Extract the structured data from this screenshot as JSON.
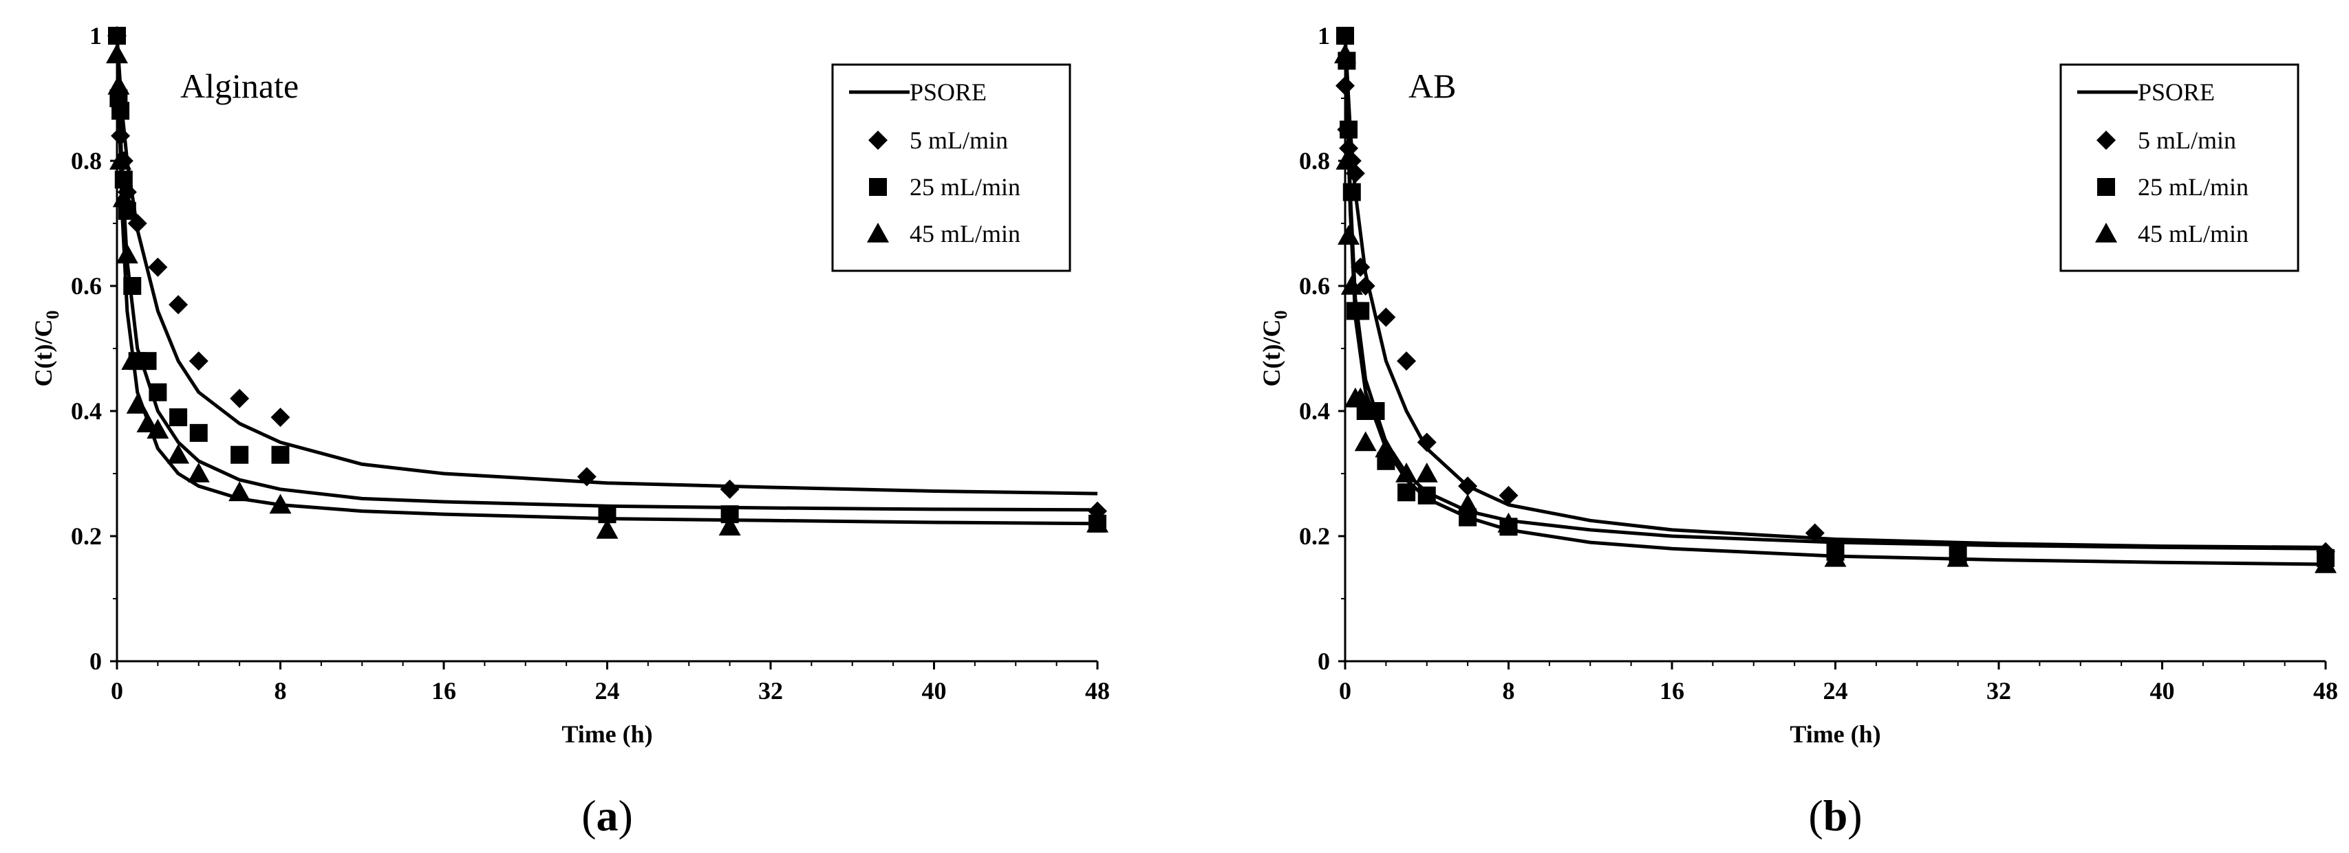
{
  "chart_data": [
    {
      "type": "scatter",
      "panel_label": "(a)",
      "annotation": "Alginate",
      "xlabel": "Time (h)",
      "ylabel": "C(t)/C",
      "ylabel_sub": "0",
      "xlim": [
        0,
        48
      ],
      "ylim": [
        0,
        1
      ],
      "xticks": [
        "0",
        "8",
        "16",
        "24",
        "32",
        "40",
        "48"
      ],
      "yticks": [
        "0",
        "0.2",
        "0.4",
        "0.6",
        "0.8",
        "1"
      ],
      "legend_position": "top-right",
      "model_label": "PSORE",
      "series": [
        {
          "name": "5 mL/min",
          "marker": "diamond",
          "x": [
            0,
            0.08,
            0.17,
            0.33,
            0.5,
            1,
            2,
            3,
            4,
            6,
            8,
            23,
            30,
            48
          ],
          "y": [
            1.0,
            0.91,
            0.84,
            0.8,
            0.75,
            0.7,
            0.63,
            0.57,
            0.48,
            0.42,
            0.39,
            0.295,
            0.275,
            0.24
          ]
        },
        {
          "name": "25 mL/min",
          "marker": "square",
          "x": [
            0,
            0.08,
            0.17,
            0.33,
            0.5,
            0.75,
            1,
            1.5,
            2,
            3,
            4,
            6,
            8,
            24,
            30,
            48
          ],
          "y": [
            1.0,
            0.9,
            0.88,
            0.77,
            0.72,
            0.6,
            0.48,
            0.48,
            0.43,
            0.39,
            0.365,
            0.33,
            0.33,
            0.235,
            0.235,
            0.22
          ]
        },
        {
          "name": "45 mL/min",
          "marker": "triangle",
          "x": [
            0,
            0.08,
            0.17,
            0.33,
            0.5,
            0.75,
            1,
            1.5,
            2,
            3,
            4,
            6,
            8,
            24,
            30,
            48
          ],
          "y": [
            0.97,
            0.92,
            0.8,
            0.74,
            0.65,
            0.48,
            0.41,
            0.38,
            0.37,
            0.33,
            0.3,
            0.27,
            0.25,
            0.21,
            0.215,
            0.22
          ]
        }
      ],
      "fits": [
        {
          "name": "PSORE 5 mL/min",
          "x": [
            0,
            0.25,
            0.5,
            1,
            2,
            3,
            4,
            6,
            8,
            12,
            16,
            24,
            32,
            40,
            48
          ],
          "y": [
            1.0,
            0.88,
            0.8,
            0.69,
            0.56,
            0.48,
            0.43,
            0.38,
            0.35,
            0.315,
            0.3,
            0.285,
            0.278,
            0.272,
            0.268
          ]
        },
        {
          "name": "PSORE 25 mL/min",
          "x": [
            0,
            0.25,
            0.5,
            1,
            2,
            3,
            4,
            6,
            8,
            12,
            16,
            24,
            32,
            40,
            48
          ],
          "y": [
            1.0,
            0.78,
            0.64,
            0.5,
            0.4,
            0.35,
            0.32,
            0.29,
            0.275,
            0.26,
            0.255,
            0.248,
            0.245,
            0.243,
            0.242
          ]
        },
        {
          "name": "PSORE 45 mL/min",
          "x": [
            0,
            0.25,
            0.5,
            1,
            2,
            3,
            4,
            6,
            8,
            12,
            16,
            24,
            32,
            40,
            48
          ],
          "y": [
            1.0,
            0.72,
            0.56,
            0.43,
            0.34,
            0.3,
            0.28,
            0.26,
            0.25,
            0.24,
            0.235,
            0.228,
            0.225,
            0.222,
            0.22
          ]
        }
      ]
    },
    {
      "type": "scatter",
      "panel_label": "(b)",
      "annotation": "AB",
      "xlabel": "Time (h)",
      "ylabel": "C(t)/C",
      "ylabel_sub": "0",
      "xlim": [
        0,
        48
      ],
      "ylim": [
        0,
        1
      ],
      "xticks": [
        "0",
        "8",
        "16",
        "24",
        "32",
        "40",
        "48"
      ],
      "yticks": [
        "0",
        "0.2",
        "0.4",
        "0.6",
        "0.8",
        "1"
      ],
      "legend_position": "top-right",
      "model_label": "PSORE",
      "series": [
        {
          "name": "5 mL/min",
          "marker": "diamond",
          "x": [
            0,
            0.08,
            0.17,
            0.33,
            0.5,
            0.75,
            1,
            2,
            3,
            4,
            6,
            8,
            23,
            48
          ],
          "y": [
            0.92,
            0.85,
            0.82,
            0.8,
            0.78,
            0.63,
            0.6,
            0.55,
            0.48,
            0.35,
            0.28,
            0.265,
            0.205,
            0.175
          ]
        },
        {
          "name": "25 mL/min",
          "marker": "square",
          "x": [
            0,
            0.08,
            0.17,
            0.33,
            0.5,
            0.75,
            1,
            1.5,
            2,
            3,
            4,
            6,
            8,
            24,
            30,
            48
          ],
          "y": [
            1.0,
            0.96,
            0.85,
            0.75,
            0.56,
            0.56,
            0.4,
            0.4,
            0.32,
            0.27,
            0.265,
            0.23,
            0.215,
            0.175,
            0.17,
            0.165
          ]
        },
        {
          "name": "45 mL/min",
          "marker": "triangle",
          "x": [
            0,
            0.08,
            0.17,
            0.33,
            0.5,
            0.75,
            1,
            2,
            3,
            4,
            6,
            8,
            24,
            30,
            48
          ],
          "y": [
            0.97,
            0.8,
            0.68,
            0.6,
            0.42,
            0.42,
            0.35,
            0.34,
            0.3,
            0.3,
            0.25,
            0.22,
            0.165,
            0.165,
            0.155
          ]
        }
      ],
      "fits": [
        {
          "name": "PSORE 5 mL/min",
          "x": [
            0,
            0.25,
            0.5,
            1,
            2,
            3,
            4,
            6,
            8,
            12,
            16,
            24,
            32,
            40,
            48
          ],
          "y": [
            1.0,
            0.85,
            0.75,
            0.62,
            0.48,
            0.4,
            0.34,
            0.28,
            0.25,
            0.225,
            0.21,
            0.195,
            0.188,
            0.184,
            0.182
          ]
        },
        {
          "name": "PSORE 25 mL/min",
          "x": [
            0,
            0.25,
            0.5,
            1,
            2,
            3,
            4,
            6,
            8,
            12,
            16,
            24,
            32,
            40,
            48
          ],
          "y": [
            1.0,
            0.75,
            0.58,
            0.45,
            0.35,
            0.3,
            0.27,
            0.24,
            0.225,
            0.21,
            0.2,
            0.19,
            0.185,
            0.182,
            0.18
          ]
        },
        {
          "name": "PSORE 45 mL/min",
          "x": [
            0,
            0.25,
            0.5,
            1,
            2,
            3,
            4,
            6,
            8,
            12,
            16,
            24,
            32,
            40,
            48
          ],
          "y": [
            1.0,
            0.72,
            0.55,
            0.43,
            0.34,
            0.29,
            0.26,
            0.23,
            0.21,
            0.19,
            0.18,
            0.168,
            0.162,
            0.158,
            0.155
          ]
        }
      ]
    }
  ]
}
